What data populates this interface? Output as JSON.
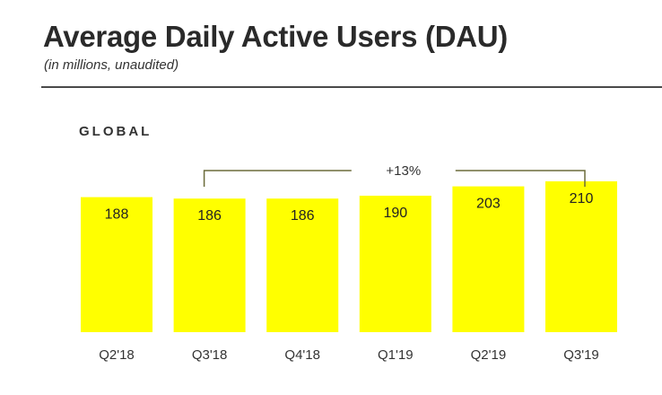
{
  "header": {
    "title": "Average Daily Active Users (DAU)",
    "subtitle": "(in millions, unaudited)"
  },
  "section_label": "GLOBAL",
  "colors": {
    "bar": "#ffff00",
    "bracket": "#6b6b3a",
    "rule": "#4a4a4a"
  },
  "chart_data": {
    "type": "bar",
    "categories": [
      "Q2'18",
      "Q3'18",
      "Q4'18",
      "Q1'19",
      "Q2'19",
      "Q3'19"
    ],
    "values": [
      188,
      186,
      186,
      190,
      203,
      210
    ],
    "data_labels": [
      "188",
      "186",
      "186",
      "190",
      "203",
      "210"
    ],
    "title": "",
    "xlabel": "",
    "ylabel": "",
    "annotation": {
      "text": "+13%",
      "from_category": "Q3'18",
      "to_category": "Q3'19"
    },
    "grid": false,
    "legend": "none"
  }
}
